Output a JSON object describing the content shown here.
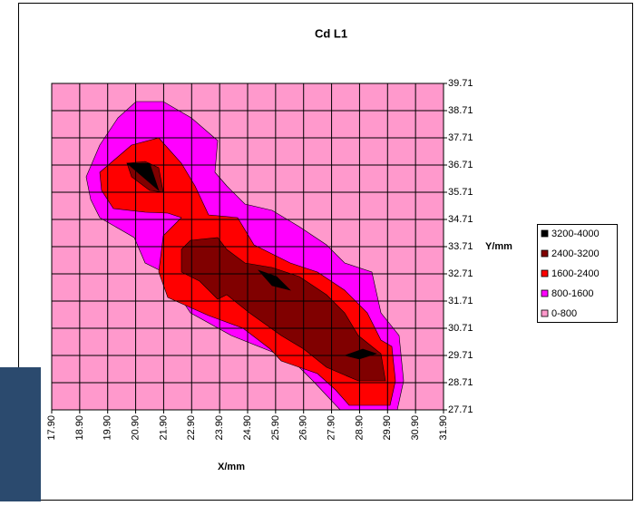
{
  "chart_data": {
    "type": "contour",
    "title": "Cd L1",
    "x_label": "X/mm",
    "y_label": "Y/mm",
    "xlim": [
      17.9,
      31.9
    ],
    "xticks": [
      {
        "value": 17.9,
        "label": "17.90"
      },
      {
        "value": 18.9,
        "label": "18.90"
      },
      {
        "value": 19.9,
        "label": "19.90"
      },
      {
        "value": 20.9,
        "label": "20.90"
      },
      {
        "value": 21.9,
        "label": "21.90"
      },
      {
        "value": 22.9,
        "label": "22.90"
      },
      {
        "value": 23.9,
        "label": "23.90"
      },
      {
        "value": 24.9,
        "label": "24.90"
      },
      {
        "value": 25.9,
        "label": "25.90"
      },
      {
        "value": 26.9,
        "label": "26.90"
      },
      {
        "value": 27.9,
        "label": "27.90"
      },
      {
        "value": 28.9,
        "label": "28.90"
      },
      {
        "value": 29.9,
        "label": "29.90"
      },
      {
        "value": 30.9,
        "label": "30.90"
      },
      {
        "value": 31.9,
        "label": "31.90"
      }
    ],
    "ylim": [
      27.71,
      39.71
    ],
    "yticks": [
      27.71,
      28.71,
      29.71,
      30.71,
      31.71,
      32.71,
      33.71,
      34.71,
      35.71,
      36.71,
      37.71,
      38.71,
      39.71
    ],
    "grid": true,
    "series": [
      {
        "name": "3200-4000",
        "color": "#000000"
      },
      {
        "name": "2400-3200",
        "color": "#800000"
      },
      {
        "name": "1600-2400",
        "color": "#ff0000"
      },
      {
        "name": "800-1600",
        "color": "#ff00ff"
      },
      {
        "name": "0-800",
        "color": "#ff99cc"
      }
    ]
  }
}
